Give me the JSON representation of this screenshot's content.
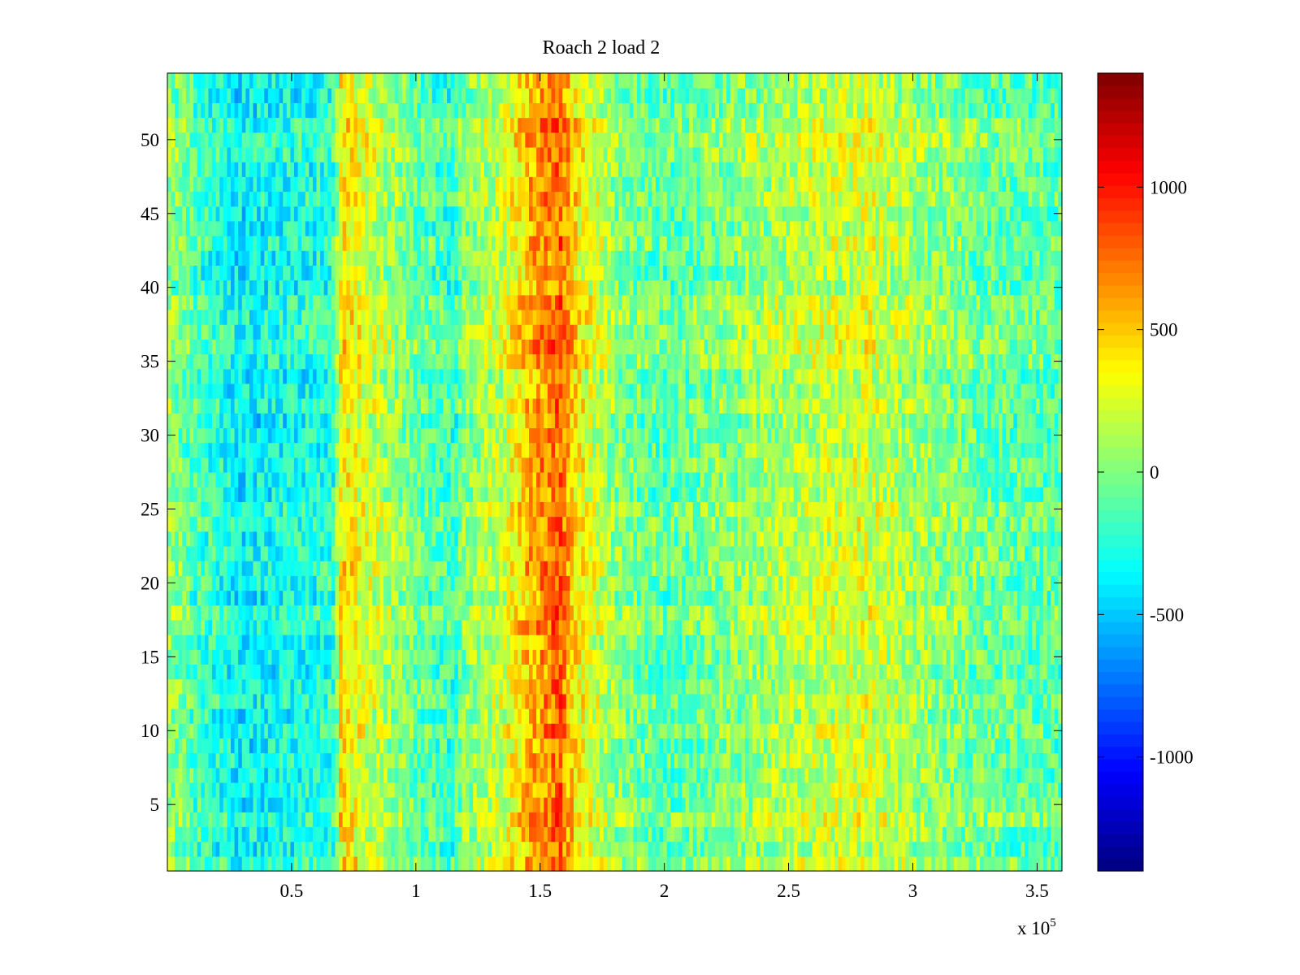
{
  "chart_data": {
    "type": "heatmap",
    "title": "Roach 2 load 2",
    "xlabel": "",
    "ylabel": "",
    "x_range": [
      0,
      360000
    ],
    "y_range": [
      0.5,
      54.5
    ],
    "n_rows": 54,
    "x_ticks": [
      50000,
      100000,
      150000,
      200000,
      250000,
      300000,
      350000
    ],
    "x_tick_labels": [
      "0.5",
      "1",
      "1.5",
      "2",
      "2.5",
      "3",
      "3.5"
    ],
    "x_exponent_label": {
      "base": "x 10",
      "exponent": "5"
    },
    "y_ticks": [
      5,
      10,
      15,
      20,
      25,
      30,
      35,
      40,
      45,
      50
    ],
    "y_tick_labels": [
      "5",
      "10",
      "15",
      "20",
      "25",
      "30",
      "35",
      "40",
      "45",
      "50"
    ],
    "colormap": "jet",
    "color_range": [
      -1400,
      1400
    ],
    "colorbar_ticks": [
      1000,
      500,
      0,
      -500,
      -1000
    ],
    "colorbar_tick_labels": [
      "1000",
      "500",
      "0",
      "-500",
      "-1000"
    ],
    "column_profile_description": "Approximate mean value by x-position (data units); noisy per cell",
    "column_profile": [
      {
        "x": 0,
        "value": 100
      },
      {
        "x": 12000,
        "value": -150
      },
      {
        "x": 30000,
        "value": -350
      },
      {
        "x": 60000,
        "value": -250
      },
      {
        "x": 67000,
        "value": -200
      },
      {
        "x": 70000,
        "value": 450
      },
      {
        "x": 80000,
        "value": 250
      },
      {
        "x": 100000,
        "value": -50
      },
      {
        "x": 115000,
        "value": -200
      },
      {
        "x": 120000,
        "value": 50
      },
      {
        "x": 135000,
        "value": 200
      },
      {
        "x": 145000,
        "value": 550
      },
      {
        "x": 158000,
        "value": 800
      },
      {
        "x": 165000,
        "value": 400
      },
      {
        "x": 180000,
        "value": 50
      },
      {
        "x": 200000,
        "value": -100
      },
      {
        "x": 220000,
        "value": 0
      },
      {
        "x": 250000,
        "value": 150
      },
      {
        "x": 280000,
        "value": 250
      },
      {
        "x": 300000,
        "value": 100
      },
      {
        "x": 330000,
        "value": -50
      },
      {
        "x": 360000,
        "value": -100
      }
    ],
    "grid": false,
    "legend": "colorbar-right"
  }
}
